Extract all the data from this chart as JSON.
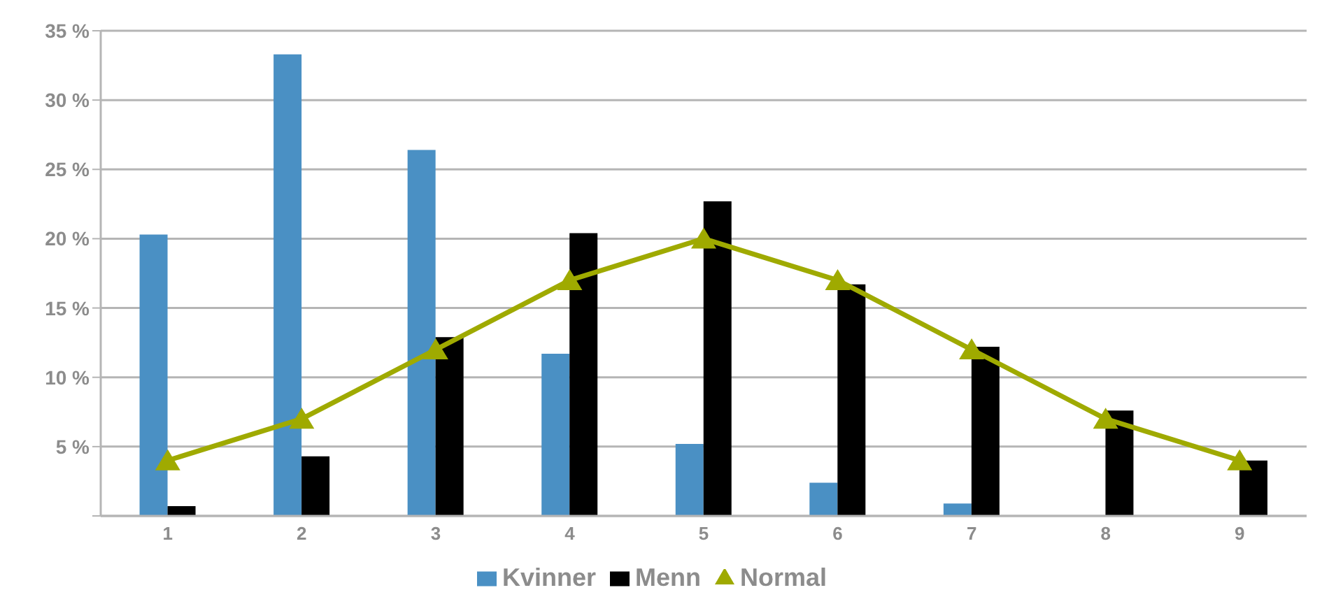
{
  "chart_data": {
    "type": "bar",
    "categories": [
      "1",
      "2",
      "3",
      "4",
      "5",
      "6",
      "7",
      "8",
      "9"
    ],
    "series": [
      {
        "name": "Kvinner",
        "color": "#4a90c4",
        "values": [
          20.3,
          33.3,
          26.4,
          11.7,
          5.2,
          2.4,
          0.9,
          0,
          0
        ]
      },
      {
        "name": "Menn",
        "color": "#000000",
        "values": [
          0.7,
          4.3,
          12.9,
          20.4,
          22.7,
          16.7,
          12.2,
          7.6,
          4.0
        ]
      },
      {
        "name": "Normal",
        "type": "line",
        "color": "#9faa00",
        "marker": "triangle",
        "values": [
          4,
          7,
          12,
          17,
          20,
          17,
          12,
          7,
          4
        ]
      }
    ],
    "ylim": [
      0,
      35
    ],
    "yticks": [
      {
        "value": 0,
        "label": null
      },
      {
        "value": 5,
        "label": "5 %"
      },
      {
        "value": 10,
        "label": "10 %"
      },
      {
        "value": 15,
        "label": "15 %"
      },
      {
        "value": 20,
        "label": "20 %"
      },
      {
        "value": 25,
        "label": "25 %"
      },
      {
        "value": 30,
        "label": "30 %"
      },
      {
        "value": 35,
        "label": "35 %"
      }
    ],
    "grid": "y",
    "legend": "bottom"
  }
}
